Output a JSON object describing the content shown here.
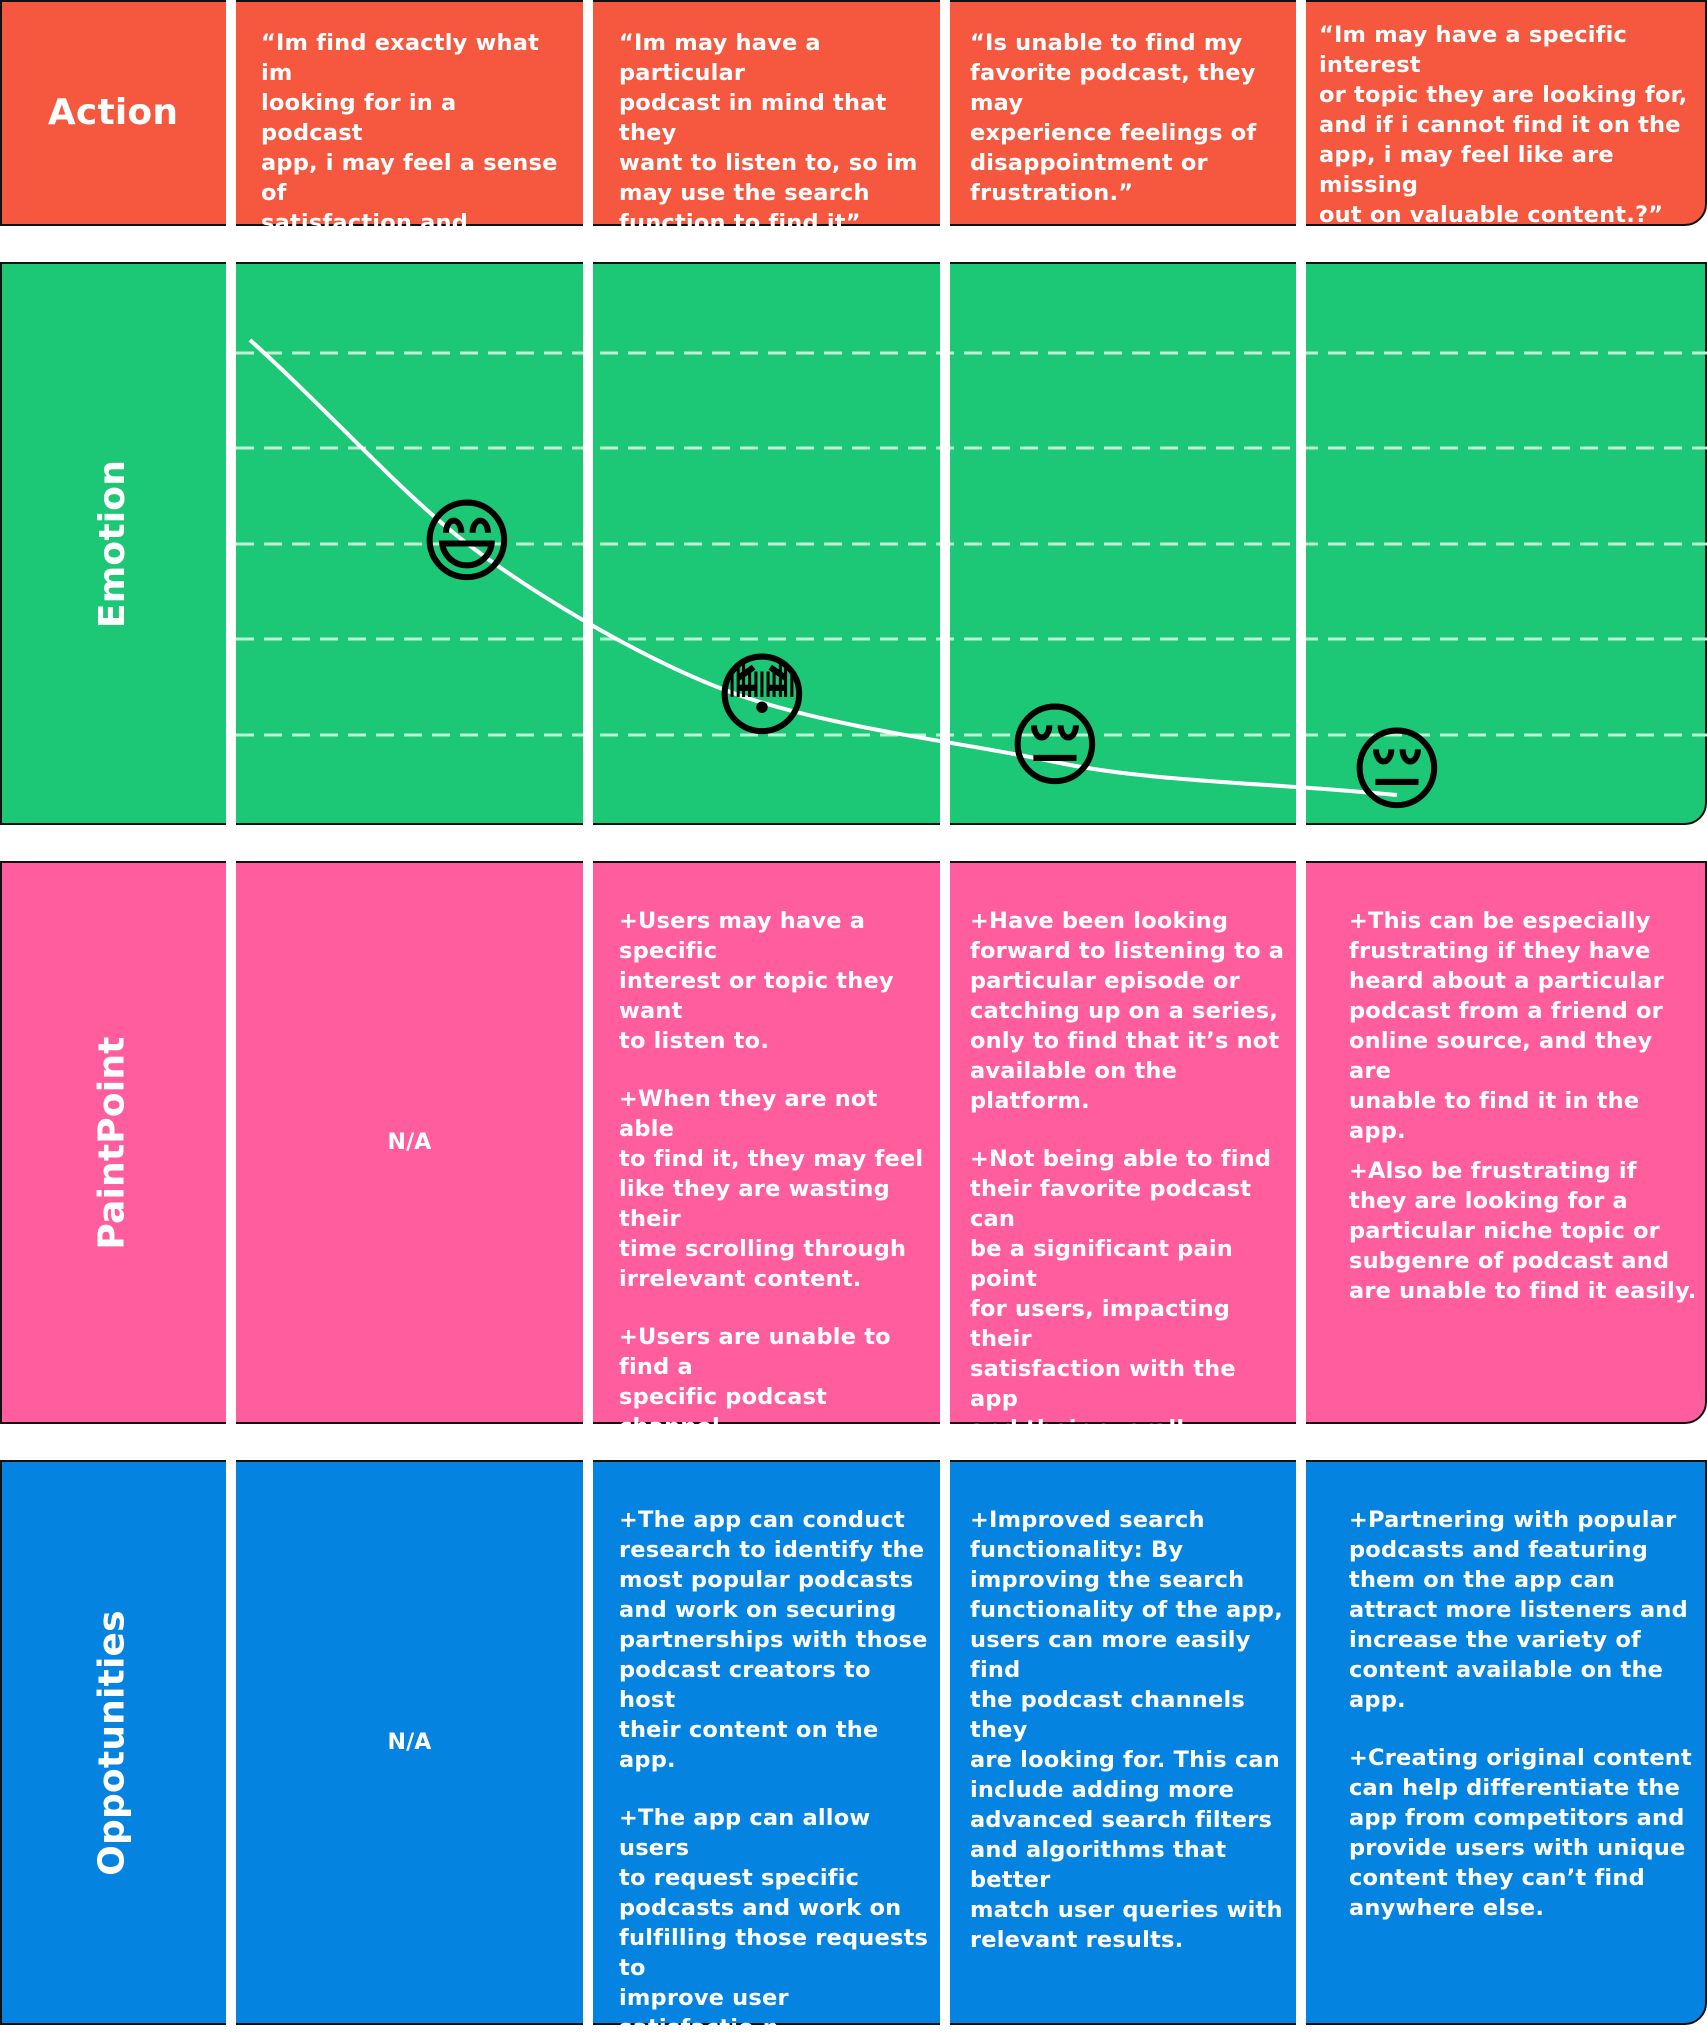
{
  "colors": {
    "action": "#F5573F",
    "emotion": "#1CC775",
    "painpoint": "#FF5D9E",
    "opportunities": "#0583E0"
  },
  "rows": {
    "action": {
      "label": "Action",
      "cells": [
        "“Im find exactly what im\nlooking for in a podcast\napp, i may feel a sense of\nsatisfaction and\nexcitement.”",
        "“Im may have a particular\npodcast in mind that they\nwant to listen to, so im\nmay use the search\nfunction to find it”",
        "“Is unable to find my\nfavorite podcast, they may\nexperience feelings of\ndisappointment or\nfrustration.”",
        "“Im may have a specific interest\nor topic they are looking for,\nand if i cannot find it on the\napp, i may feel like are missing\nout on valuable content.?”"
      ]
    },
    "emotion": {
      "label": "Emotion",
      "points": [
        {
          "stage": 1,
          "emoji": "😄"
        },
        {
          "stage": 2,
          "emoji": "😳"
        },
        {
          "stage": 3,
          "emoji": "😔"
        },
        {
          "stage": 4,
          "emoji": "😔"
        }
      ]
    },
    "painpoint": {
      "label": "PaintPoint",
      "na": "N/A",
      "cells": [
        [
          "+Users may have a specific\ninterest or topic they want\nto listen to.",
          "+When they are not able\nto find it, they may feel\nlike they are wasting their\ntime scrolling through\nirrelevant content.",
          "+Users are unable to find a\nspecific podcast channel,\nthey may be forced to\nswitch to a different app\nor platform to find the\ncontent they want."
        ],
        [
          "+Have been looking\nforward to listening to a\nparticular episode or\ncatching up on a series,\nonly to find that it’s not\navailable on the platform.",
          "+Not being able to find\ntheir favorite podcast can\nbe a significant pain point\nfor users, impacting their\nsatisfaction with the app\nand their overall podcast\nlistening experience."
        ],
        [
          "+This can be especially\nfrustrating if they have\nheard about a particular\npodcast from a friend or\nonline source, and they are\nunable to find it in the\napp.",
          "+Also be frustrating if\nthey are looking for a\nparticular niche topic or\nsubgenre of podcast and\nare unable to find it easily."
        ]
      ]
    },
    "opportunities": {
      "label": "Oppotunities",
      "na": "N/A",
      "cells": [
        [
          "+The app can conduct\nresearch to identify the\nmost popular podcasts\nand work on securing\npartnerships with those\npodcast creators to host\ntheir content on the app.",
          "+The app can allow users\nto request specific\npodcasts and work on\nfulfilling those requests to\nimprove user satisfactio.n"
        ],
        [
          "+Improved search\nfunctionality: By\nimproving the search\nfunctionality of the app,\nusers can more easily find\nthe podcast channels they\nare looking for. This can\ninclude adding more\nadvanced search filters\nand algorithms that better\nmatch user queries with\nrelevant results."
        ],
        [
          "+Partnering with popular\npodcasts and featuring\nthem on the app can\nattract more listeners and\nincrease the variety of\ncontent available on the\napp.",
          "+Creating original content\ncan help differentiate the\napp from competitors and\nprovide users with unique\ncontent they can’t find\nanywhere else."
        ]
      ]
    }
  }
}
